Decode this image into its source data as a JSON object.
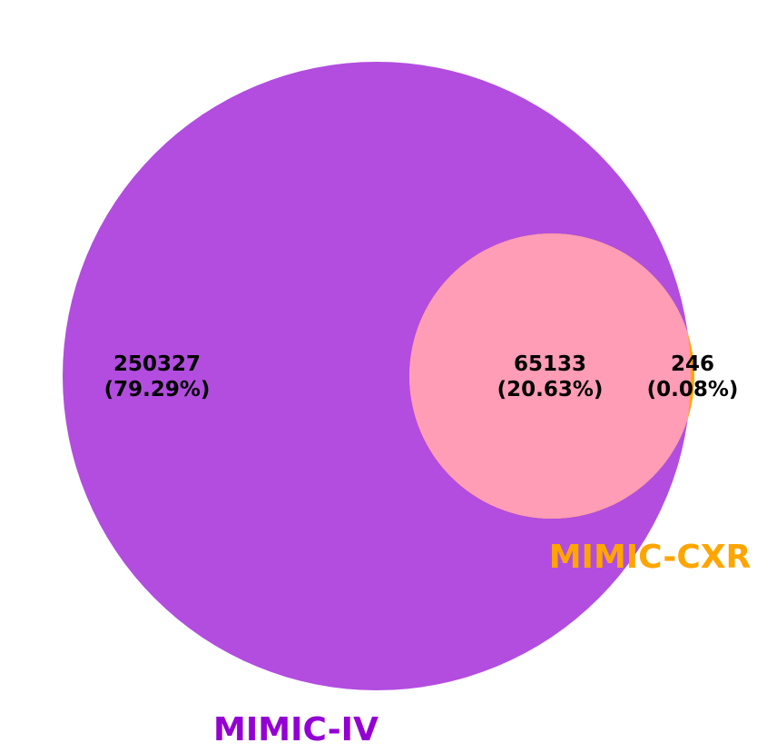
{
  "sets": {
    "a": {
      "name": "MIMIC-IV",
      "color": "#b24ddf",
      "label_color": "#9400d3"
    },
    "b": {
      "name": "MIMIC-CXR",
      "color": "#ffa500",
      "label_color": "#ffa500"
    },
    "overlap_color": "#ff9cb6"
  },
  "regions": {
    "a_only": {
      "count": "250327",
      "percent": "(79.29%)"
    },
    "both": {
      "count": "65133",
      "percent": "(20.63%)"
    },
    "b_only": {
      "count": "246",
      "percent": "(0.08%)"
    }
  }
}
